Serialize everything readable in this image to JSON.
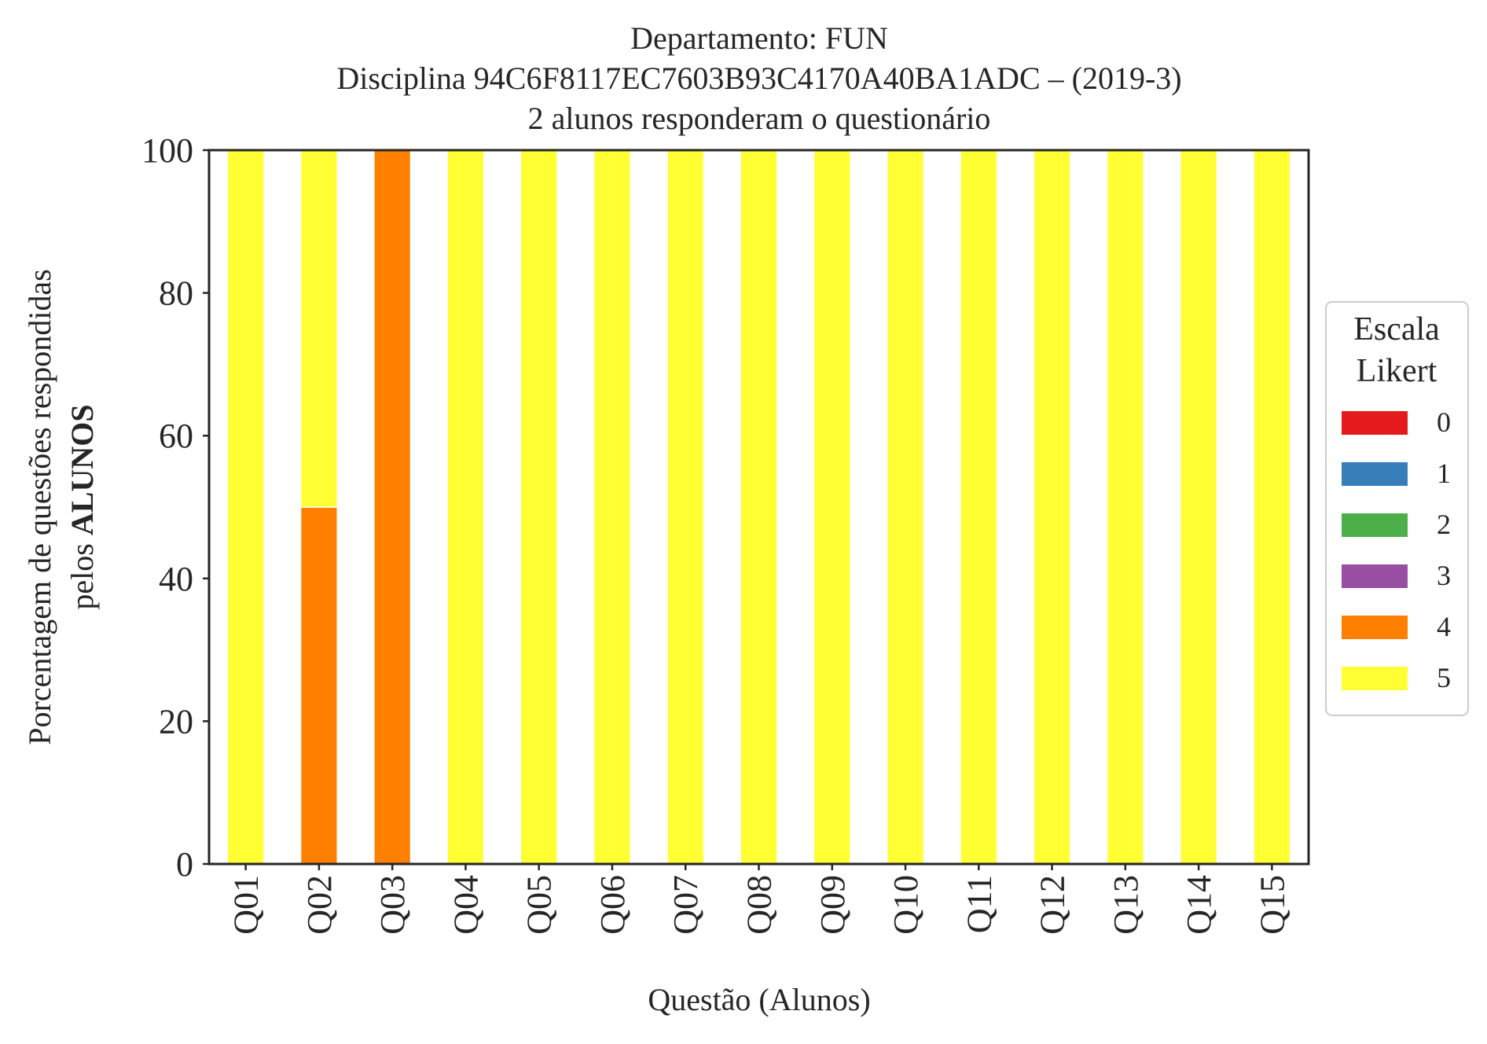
{
  "chart_data": {
    "type": "bar",
    "stacked": true,
    "title": "Departamento: FUN\nDisciplina 94C6F8117EC7603B93C4170A40BA1ADC – (2019-3)\n2 alunos responderam o questionário",
    "title_lines": [
      "Departamento: FUN",
      "Disciplina 94C6F8117EC7603B93C4170A40BA1ADC – (2019-3)",
      "2 alunos responderam o questionário"
    ],
    "xlabel": "Questão (Alunos)",
    "ylabel_line1": "Porcentagem de questões respondidas",
    "ylabel_line2_prefix": "pelos",
    "ylabel_line2_bold": "ALUNOS",
    "ylim": [
      0,
      100
    ],
    "yticks": [
      0,
      20,
      40,
      60,
      80,
      100
    ],
    "grid": false,
    "legend": {
      "title_lines": [
        "Escala",
        "Likert"
      ],
      "placement": "right-center"
    },
    "categories": [
      "Q01",
      "Q02",
      "Q03",
      "Q04",
      "Q05",
      "Q06",
      "Q07",
      "Q08",
      "Q09",
      "Q10",
      "Q11",
      "Q12",
      "Q13",
      "Q14",
      "Q15"
    ],
    "series": [
      {
        "name": "0",
        "color": "#e41a1c",
        "values": [
          0,
          0,
          0,
          0,
          0,
          0,
          0,
          0,
          0,
          0,
          0,
          0,
          0,
          0,
          0
        ]
      },
      {
        "name": "1",
        "color": "#377eb8",
        "values": [
          0,
          0,
          0,
          0,
          0,
          0,
          0,
          0,
          0,
          0,
          0,
          0,
          0,
          0,
          0
        ]
      },
      {
        "name": "2",
        "color": "#4daf4a",
        "values": [
          0,
          0,
          0,
          0,
          0,
          0,
          0,
          0,
          0,
          0,
          0,
          0,
          0,
          0,
          0
        ]
      },
      {
        "name": "3",
        "color": "#984ea3",
        "values": [
          0,
          0,
          0,
          0,
          0,
          0,
          0,
          0,
          0,
          0,
          0,
          0,
          0,
          0,
          0
        ]
      },
      {
        "name": "4",
        "color": "#ff7f00",
        "values": [
          0,
          50,
          100,
          0,
          0,
          0,
          0,
          0,
          0,
          0,
          0,
          0,
          0,
          0,
          0
        ]
      },
      {
        "name": "5",
        "color": "#ffff33",
        "values": [
          100,
          50,
          0,
          100,
          100,
          100,
          100,
          100,
          100,
          100,
          100,
          100,
          100,
          100,
          100
        ]
      }
    ]
  }
}
